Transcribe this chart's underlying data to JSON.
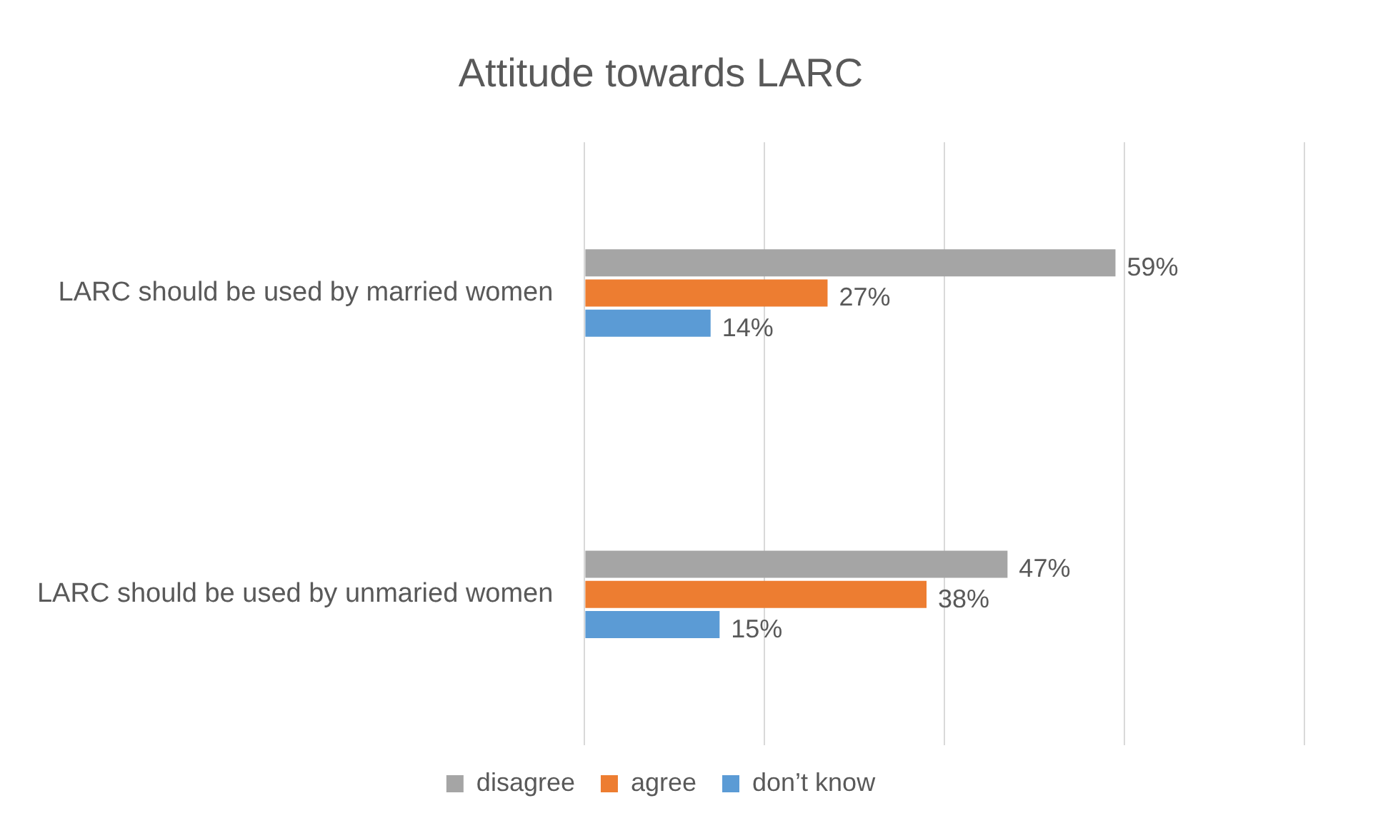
{
  "chart_data": {
    "type": "bar",
    "orientation": "horizontal",
    "title": "Attitude towards LARC",
    "categories": [
      "LARC should be used by married women",
      "LARC should be used by unmaried women"
    ],
    "series": [
      {
        "name": "disagree",
        "color": "#a5a5a5",
        "values": [
          59,
          47
        ],
        "value_labels": [
          "59%",
          "47%"
        ]
      },
      {
        "name": "agree",
        "color": "#ed7d31",
        "values": [
          27,
          38
        ],
        "value_labels": [
          "27%",
          "38%"
        ]
      },
      {
        "name": "don’t know",
        "color": "#5b9bd5",
        "values": [
          14,
          15
        ],
        "value_labels": [
          "14%",
          "15%"
        ]
      }
    ],
    "xlim": [
      0,
      80
    ],
    "xticks": [
      {
        "value": 0,
        "label": null
      },
      {
        "value": 20,
        "label": null
      },
      {
        "value": 40,
        "label": null
      },
      {
        "value": 60,
        "label": null
      },
      {
        "value": 80,
        "label": null
      }
    ],
    "tick_labels": "y",
    "grid": "x",
    "legend": "bottom"
  }
}
